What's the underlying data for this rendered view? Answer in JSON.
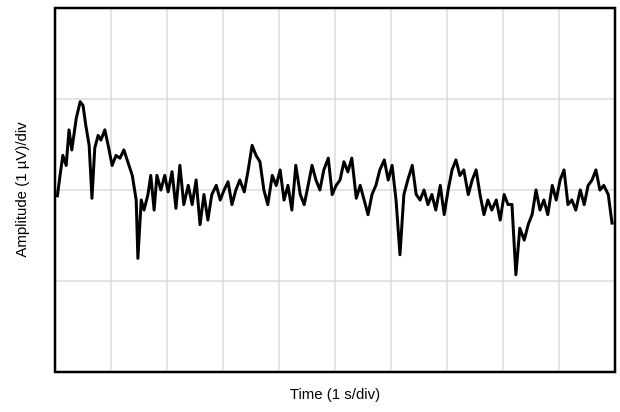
{
  "chart_data": {
    "type": "line",
    "x_label": "Time (1 s/div)",
    "y_label": "Amplitude (1 µV)/div",
    "xlim": [
      0,
      10
    ],
    "ylim": [
      -2,
      2
    ],
    "xticks": [
      0,
      1,
      2,
      3,
      4,
      5,
      6,
      7,
      8,
      9,
      10
    ],
    "yticks": [
      -2,
      -1,
      0,
      1,
      2
    ],
    "grid": true,
    "tick_labels": false,
    "series": [
      {
        "color": "#000000",
        "x": [
          0.04,
          0.09,
          0.14,
          0.2,
          0.25,
          0.3,
          0.38,
          0.45,
          0.5,
          0.55,
          0.61,
          0.66,
          0.71,
          0.77,
          0.82,
          0.89,
          0.95,
          1.02,
          1.09,
          1.16,
          1.23,
          1.3,
          1.38,
          1.45,
          1.48,
          1.54,
          1.59,
          1.66,
          1.71,
          1.77,
          1.82,
          1.89,
          1.96,
          2.02,
          2.09,
          2.16,
          2.23,
          2.3,
          2.38,
          2.45,
          2.52,
          2.59,
          2.66,
          2.73,
          2.8,
          2.88,
          2.95,
          3.02,
          3.09,
          3.16,
          3.23,
          3.3,
          3.38,
          3.45,
          3.52,
          3.59,
          3.66,
          3.73,
          3.8,
          3.88,
          3.95,
          4.02,
          4.09,
          4.16,
          4.23,
          4.3,
          4.38,
          4.45,
          4.52,
          4.59,
          4.66,
          4.73,
          4.8,
          4.88,
          4.95,
          5.02,
          5.09,
          5.16,
          5.23,
          5.3,
          5.38,
          5.45,
          5.52,
          5.59,
          5.66,
          5.73,
          5.8,
          5.88,
          5.95,
          6.02,
          6.09,
          6.16,
          6.23,
          6.3,
          6.38,
          6.45,
          6.52,
          6.59,
          6.66,
          6.73,
          6.8,
          6.88,
          6.95,
          7.02,
          7.09,
          7.16,
          7.23,
          7.3,
          7.38,
          7.45,
          7.52,
          7.59,
          7.66,
          7.73,
          7.8,
          7.88,
          7.95,
          8.02,
          8.09,
          8.16,
          8.23,
          8.3,
          8.38,
          8.45,
          8.52,
          8.59,
          8.66,
          8.73,
          8.8,
          8.88,
          8.95,
          9.02,
          9.09,
          9.16,
          9.23,
          9.3,
          9.38,
          9.45,
          9.52,
          9.59,
          9.66,
          9.73,
          9.8,
          9.88,
          9.95
        ],
        "values": [
          -0.08,
          0.16,
          0.38,
          0.27,
          0.66,
          0.44,
          0.79,
          0.97,
          0.93,
          0.71,
          0.49,
          -0.09,
          0.46,
          0.6,
          0.55,
          0.66,
          0.49,
          0.27,
          0.38,
          0.35,
          0.44,
          0.31,
          0.16,
          -0.11,
          -0.75,
          -0.11,
          -0.22,
          -0.05,
          0.16,
          -0.22,
          0.16,
          0,
          0.16,
          -0.02,
          0.2,
          -0.2,
          0.27,
          -0.16,
          0.05,
          -0.16,
          0.11,
          -0.38,
          -0.05,
          -0.33,
          -0.05,
          0.05,
          -0.11,
          0,
          0.09,
          -0.16,
          0,
          0.11,
          -0.02,
          0.22,
          0.49,
          0.38,
          0.31,
          0,
          -0.16,
          0.16,
          0.05,
          0.22,
          -0.11,
          0.05,
          -0.22,
          0.27,
          -0.05,
          -0.16,
          0.05,
          0.27,
          0.11,
          0,
          0.22,
          0.35,
          -0.05,
          0.05,
          0.11,
          0.31,
          0.2,
          0.35,
          -0.09,
          0.05,
          -0.11,
          -0.27,
          -0.05,
          0.05,
          0.22,
          0.33,
          0.11,
          0.27,
          -0.11,
          -0.71,
          -0.05,
          0.11,
          0.27,
          -0.05,
          -0.11,
          0,
          -0.16,
          -0.05,
          -0.22,
          0.05,
          -0.27,
          0,
          0.22,
          0.33,
          0.16,
          0.22,
          -0.05,
          0.11,
          0.22,
          -0.05,
          -0.27,
          -0.11,
          -0.22,
          -0.11,
          -0.33,
          -0.05,
          -0.16,
          -0.16,
          -0.93,
          -0.42,
          -0.55,
          -0.38,
          -0.27,
          0,
          -0.22,
          -0.11,
          -0.27,
          0.05,
          -0.11,
          0.11,
          0.22,
          -0.16,
          -0.11,
          -0.22,
          0,
          -0.16,
          0.05,
          0.11,
          0.22,
          0,
          0.05,
          -0.05,
          -0.38
        ]
      }
    ]
  }
}
